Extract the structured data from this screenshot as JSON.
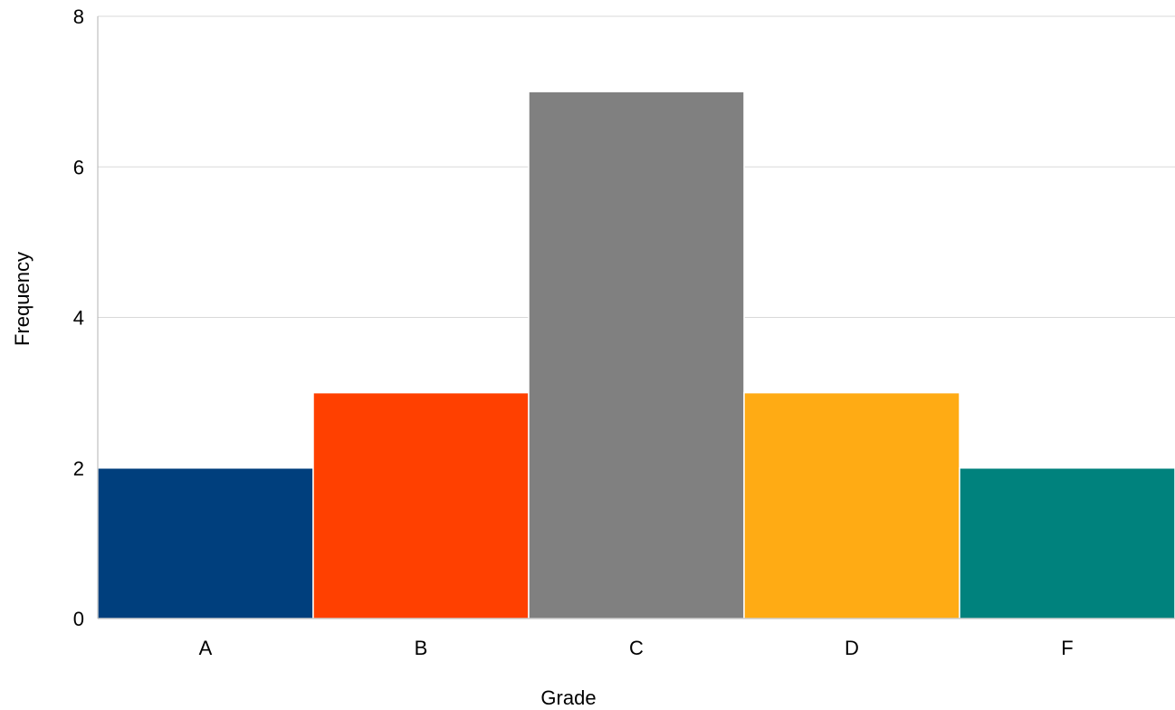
{
  "chart_data": {
    "type": "bar",
    "title": "",
    "xlabel": "Grade",
    "ylabel": "Frequency",
    "categories": [
      "A",
      "B",
      "C",
      "D",
      "F"
    ],
    "values": [
      2,
      3,
      7,
      3,
      2
    ],
    "colors": [
      "#003f7d",
      "#ff4000",
      "#808080",
      "#ffab14",
      "#00827d"
    ],
    "ylim": [
      0,
      8
    ],
    "yticks": [
      0,
      2,
      4,
      6,
      8
    ],
    "grid": true,
    "legend": "none"
  }
}
